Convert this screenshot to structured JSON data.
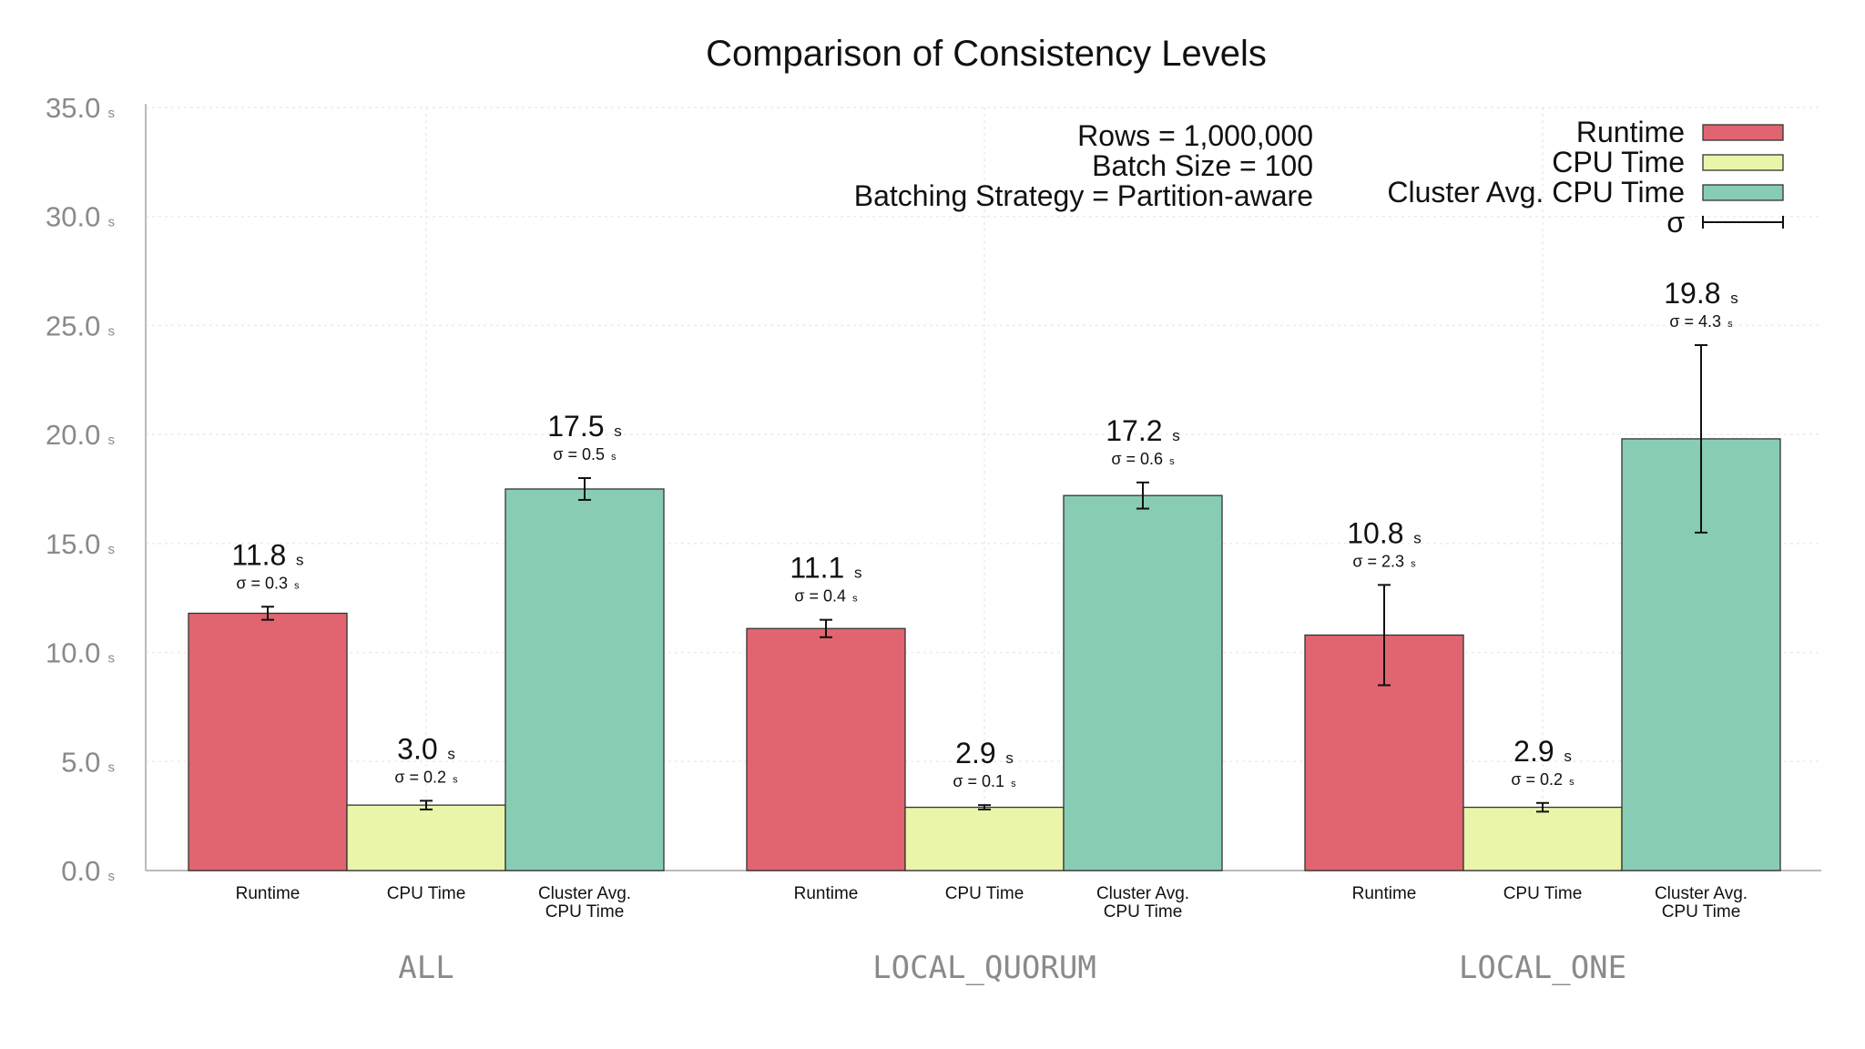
{
  "chart_data": {
    "type": "bar",
    "title": "Comparison of Consistency Levels",
    "unit": "s",
    "ylim": [
      0,
      35
    ],
    "yticks": [
      "0.0",
      "5.0",
      "10.0",
      "15.0",
      "20.0",
      "25.0",
      "30.0",
      "35.0"
    ],
    "grid": true,
    "groups": [
      "ALL",
      "LOCAL_QUORUM",
      "LOCAL_ONE"
    ],
    "categories": [
      "Runtime",
      "CPU Time",
      "Cluster Avg. CPU Time"
    ],
    "category_labels": [
      [
        "Runtime"
      ],
      [
        "CPU Time"
      ],
      [
        "Cluster Avg.",
        "CPU Time"
      ]
    ],
    "series": [
      {
        "name": "Runtime",
        "color": "#e06570",
        "values": [
          11.8,
          11.1,
          10.8
        ],
        "value_labels": [
          "11.8",
          "11.1",
          "10.8"
        ],
        "sigma": [
          0.3,
          0.4,
          2.3
        ],
        "sigma_labels": [
          "σ = 0.3",
          "σ = 0.4",
          "σ = 2.3"
        ]
      },
      {
        "name": "CPU Time",
        "color": "#eaf5a9",
        "values": [
          3.0,
          2.9,
          2.9
        ],
        "value_labels": [
          "3.0",
          "2.9",
          "2.9"
        ],
        "sigma": [
          0.2,
          0.1,
          0.2
        ],
        "sigma_labels": [
          "σ = 0.2",
          "σ = 0.1",
          "σ = 0.2"
        ]
      },
      {
        "name": "Cluster Avg. CPU Time",
        "color": "#88cdb3",
        "values": [
          17.5,
          17.2,
          19.8
        ],
        "value_labels": [
          "17.5",
          "17.2",
          "19.8"
        ],
        "sigma": [
          0.5,
          0.6,
          4.3
        ],
        "sigma_labels": [
          "σ = 0.5",
          "σ = 0.6",
          "σ = 4.3"
        ]
      }
    ],
    "annotations": [
      "Rows = 1,000,000",
      "Batch Size = 100",
      "Batching Strategy = Partition-aware"
    ],
    "legend": {
      "position": "top-right",
      "entries": [
        "Runtime",
        "CPU Time",
        "Cluster Avg. CPU Time",
        "σ"
      ]
    }
  }
}
